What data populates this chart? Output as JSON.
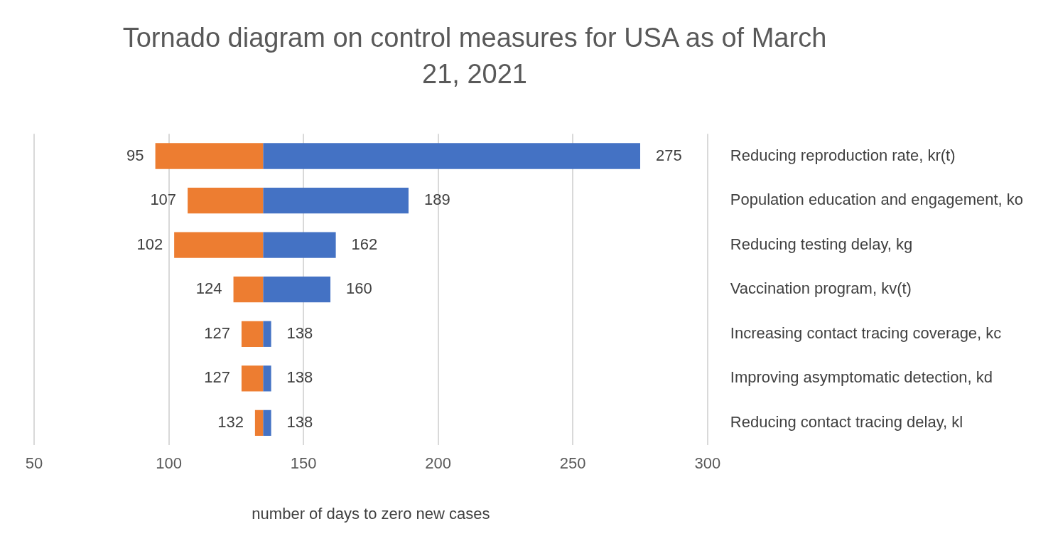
{
  "chart_data": {
    "type": "bar",
    "orientation": "horizontal",
    "title": "Tornado diagram on control measures for USA as of March 21, 2021",
    "xlabel": "number of days to zero new cases",
    "categories": [
      "Reducing reproduction rate, kr(t)",
      "Population education and engagement, ko",
      "Reducing testing delay, kg",
      "Vaccination program, kv(t)",
      "Increasing contact tracing coverage, kc",
      "Improving asymptomatic detection, kd",
      "Reducing contact tracing delay, kl"
    ],
    "series": [
      {
        "color": "#ed7d31",
        "base": [
          135,
          135,
          135,
          135,
          135,
          135,
          135
        ],
        "values": [
          -40,
          -28,
          -33,
          -11,
          -8,
          -8,
          -3
        ],
        "value_labels": [
          "95",
          "107",
          "102",
          "124",
          "127",
          "127",
          "132"
        ]
      },
      {
        "color": "#4472c4",
        "base": [
          135,
          135,
          135,
          135,
          135,
          135,
          135
        ],
        "values": [
          140,
          54,
          27,
          25,
          3,
          3,
          3
        ],
        "value_labels": [
          "275",
          "189",
          "162",
          "160",
          "138",
          "138",
          "138"
        ]
      }
    ],
    "xlim": [
      50,
      300
    ],
    "xticks": [
      50,
      100,
      150,
      200,
      250,
      300
    ],
    "grid": "x"
  }
}
